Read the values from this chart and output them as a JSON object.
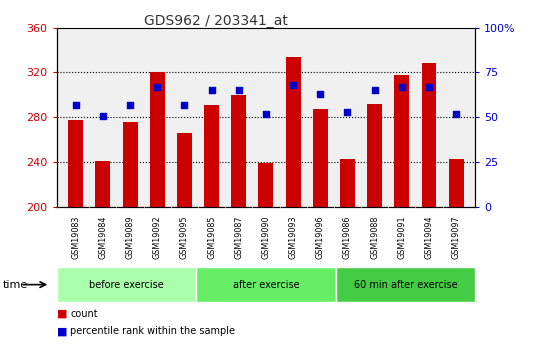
{
  "title": "GDS962 / 203341_at",
  "samples": [
    "GSM19083",
    "GSM19084",
    "GSM19089",
    "GSM19092",
    "GSM19095",
    "GSM19085",
    "GSM19087",
    "GSM19090",
    "GSM19093",
    "GSM19096",
    "GSM19086",
    "GSM19088",
    "GSM19091",
    "GSM19094",
    "GSM19097"
  ],
  "counts": [
    278,
    241,
    276,
    320,
    266,
    291,
    300,
    239,
    334,
    287,
    243,
    292,
    318,
    328,
    243
  ],
  "percentile_ranks": [
    57,
    51,
    57,
    67,
    57,
    65,
    65,
    52,
    68,
    63,
    53,
    65,
    67,
    67,
    52
  ],
  "groups": [
    {
      "label": "before exercise",
      "color": "#aaffaa",
      "start": 0,
      "end": 5
    },
    {
      "label": "after exercise",
      "color": "#66ee66",
      "start": 5,
      "end": 10
    },
    {
      "label": "60 min after exercise",
      "color": "#44cc44",
      "start": 10,
      "end": 15
    }
  ],
  "ylim_left": [
    200,
    360
  ],
  "ylim_right": [
    0,
    100
  ],
  "yticks_left": [
    200,
    240,
    280,
    320,
    360
  ],
  "yticks_right": [
    0,
    25,
    50,
    75,
    100
  ],
  "yticklabels_right": [
    "0",
    "25",
    "50",
    "75",
    "100%"
  ],
  "bar_color": "#cc0000",
  "dot_color": "#0000cc",
  "left_tick_color": "#cc0000",
  "right_tick_color": "#0000cc",
  "background_color": "#ffffff",
  "plot_bg_color": "#f0f0f0",
  "bar_width": 0.55,
  "legend_items": [
    "count",
    "percentile rank within the sample"
  ],
  "legend_colors": [
    "#cc0000",
    "#0000cc"
  ],
  "gray_band_color": "#c8c8c8",
  "group_border_color": "#ffffff"
}
